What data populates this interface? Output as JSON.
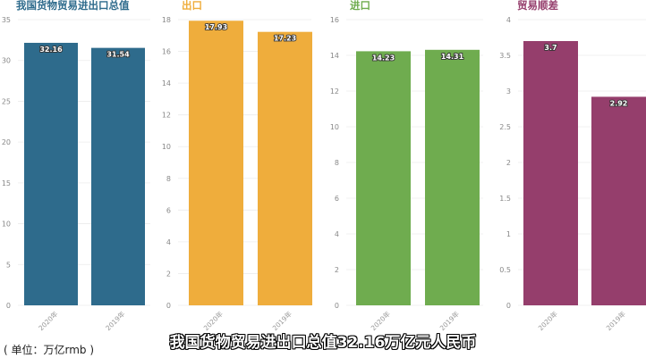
{
  "unit_note": "( 单位：万亿rmb )",
  "subtitle": "我国货物贸易进出口总值32.16万亿元人民币",
  "chart_data": [
    {
      "type": "bar",
      "title": "我国货物贸易进出口总值",
      "color": "#2e6b8c",
      "title_color": "#2e6b8c",
      "categories": [
        "2020年",
        "2019年"
      ],
      "values": [
        32.16,
        31.54
      ],
      "data_labels": [
        "32.16",
        "31.54"
      ],
      "ylim": [
        0,
        35
      ],
      "yticks": [
        0,
        5,
        10,
        15,
        20,
        25,
        30,
        35
      ],
      "grid": true
    },
    {
      "type": "bar",
      "title": "出口",
      "color": "#efad3c",
      "title_color": "#efad3c",
      "categories": [
        "2020年",
        "2019年"
      ],
      "values": [
        17.93,
        17.23
      ],
      "data_labels": [
        "17.93",
        "17.23"
      ],
      "ylim": [
        0,
        18
      ],
      "yticks": [
        0,
        2,
        4,
        6,
        8,
        10,
        12,
        14,
        16,
        18
      ],
      "grid": true
    },
    {
      "type": "bar",
      "title": "进口",
      "color": "#6fac4f",
      "title_color": "#6fac4f",
      "categories": [
        "2020年",
        "2019年"
      ],
      "values": [
        14.23,
        14.31
      ],
      "data_labels": [
        "14.23",
        "14.31"
      ],
      "ylim": [
        0,
        16
      ],
      "yticks": [
        0,
        2,
        4,
        6,
        8,
        10,
        12,
        14,
        16
      ],
      "grid": true
    },
    {
      "type": "bar",
      "title": "贸易顺差",
      "color": "#953e6c",
      "title_color": "#953e6c",
      "categories": [
        "2020年",
        "2019年"
      ],
      "values": [
        3.7,
        2.92
      ],
      "data_labels": [
        "3.7",
        "2.92"
      ],
      "ylim": [
        0,
        4
      ],
      "yticks": [
        0,
        0.5,
        1,
        1.5,
        2,
        2.5,
        3,
        3.5,
        4
      ],
      "grid": true
    }
  ]
}
